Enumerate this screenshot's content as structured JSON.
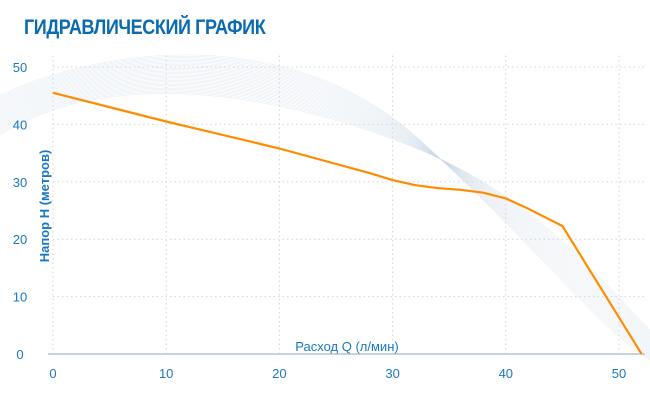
{
  "title": "ГИДРАВЛИЧЕСКИЙ ГРАФИК",
  "chart_data": {
    "type": "line",
    "title": "ГИДРАВЛИЧЕСКИЙ ГРАФИК",
    "xlabel": "Расход Q (л/мин)",
    "ylabel": "Напор H (метров)",
    "xlim": [
      0,
      52
    ],
    "ylim": [
      0,
      50
    ],
    "xticks": [
      0,
      10,
      20,
      30,
      40,
      50
    ],
    "yticks": [
      0,
      10,
      20,
      30,
      40,
      50
    ],
    "grid": true,
    "series": [
      {
        "color": "#ff8c00",
        "x": [
          0,
          10,
          20,
          28,
          30,
          32,
          34,
          36,
          38,
          40,
          42,
          45,
          52
        ],
        "y": [
          45.5,
          40.5,
          35.8,
          31.5,
          30.3,
          29.4,
          28.9,
          28.6,
          28.1,
          27.1,
          25.3,
          22.3,
          0
        ]
      }
    ],
    "colors": {
      "text": "#1a78c2",
      "title": "#0a6bb0",
      "line": "#ff8c00",
      "grid": "#d0d6dc"
    }
  }
}
